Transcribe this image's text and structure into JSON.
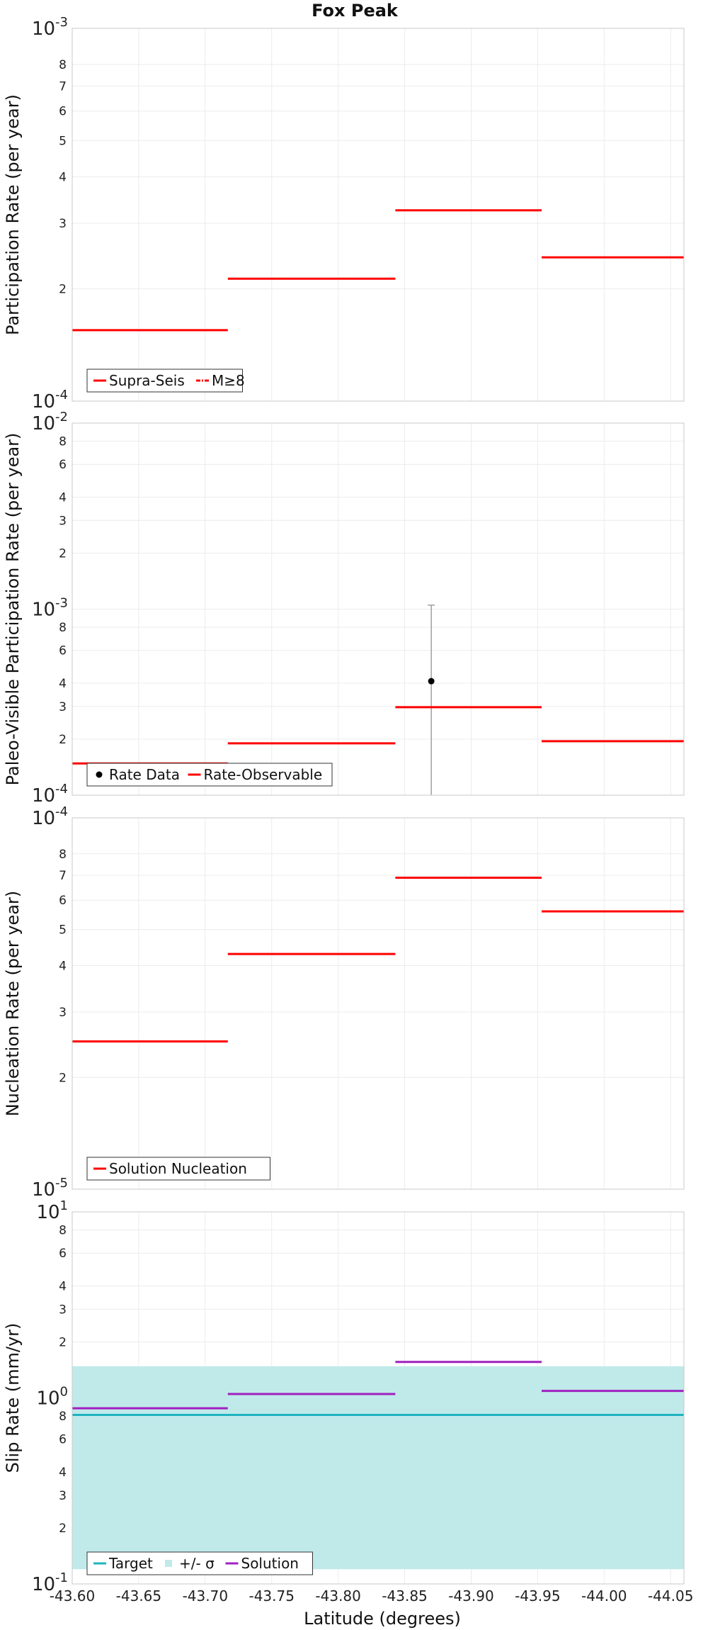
{
  "chart_data": {
    "title": "Fox Peak",
    "xlabel": "Latitude (degrees)",
    "x_range": [
      -43.6,
      -44.06
    ],
    "x_ticks": [
      -43.6,
      -43.65,
      -43.7,
      -43.75,
      -43.8,
      -43.85,
      -43.9,
      -43.95,
      -44.0,
      -44.05
    ],
    "x_tick_labels": [
      "-43.60",
      "-43.65",
      "-43.70",
      "-43.75",
      "-43.80",
      "-43.85",
      "-43.90",
      "-43.95",
      "-44.00",
      "-44.05"
    ],
    "panels": [
      {
        "type": "line",
        "ylabel": "Participation Rate (per year)",
        "yscale": "log",
        "ylim": [
          0.0001,
          0.001
        ],
        "major_labels": [
          {
            "value": 0.001,
            "base": "10",
            "exp": "-3"
          },
          {
            "value": 0.0001,
            "base": "10",
            "exp": "-4"
          }
        ],
        "minor_labels": [
          {
            "value": 0.0008,
            "label": "8"
          },
          {
            "value": 0.0007,
            "label": "7"
          },
          {
            "value": 0.0006,
            "label": "6"
          },
          {
            "value": 0.0005,
            "label": "5"
          },
          {
            "value": 0.0004,
            "label": "4"
          },
          {
            "value": 0.0003,
            "label": "3"
          },
          {
            "value": 0.0002,
            "label": "2"
          }
        ],
        "series": [
          {
            "name": "Supra-Seis",
            "color": "#ff0000",
            "style": "solid",
            "segments": [
              [
                -43.6,
                -43.717,
                0.000155
              ],
              [
                -43.717,
                -43.843,
                0.000213
              ],
              [
                -43.843,
                -43.953,
                0.000325
              ],
              [
                -43.953,
                -44.06,
                0.000243
              ]
            ]
          },
          {
            "name": "M≥8",
            "color": "#ff0000",
            "style": "dashdot",
            "segments": []
          }
        ],
        "legend": [
          "Supra-Seis",
          "M≥8"
        ]
      },
      {
        "type": "line",
        "ylabel": "Paleo-Visible Participation Rate (per year)",
        "yscale": "log",
        "ylim": [
          0.0001,
          0.01
        ],
        "major_labels": [
          {
            "value": 0.01,
            "base": "10",
            "exp": "-2"
          },
          {
            "value": 0.001,
            "base": "10",
            "exp": "-3"
          },
          {
            "value": 0.0001,
            "base": "10",
            "exp": "-4"
          }
        ],
        "minor_labels": [
          {
            "value": 0.008,
            "label": "8"
          },
          {
            "value": 0.006,
            "label": "6"
          },
          {
            "value": 0.004,
            "label": "4"
          },
          {
            "value": 0.003,
            "label": "3"
          },
          {
            "value": 0.002,
            "label": "2"
          },
          {
            "value": 0.0008,
            "label": "8"
          },
          {
            "value": 0.0006,
            "label": "6"
          },
          {
            "value": 0.0004,
            "label": "4"
          },
          {
            "value": 0.0003,
            "label": "3"
          },
          {
            "value": 0.0002,
            "label": "2"
          }
        ],
        "series": [
          {
            "name": "Rate-Observable",
            "color": "#ff0000",
            "style": "solid",
            "segments": [
              [
                -43.6,
                -43.717,
                0.000148
              ],
              [
                -43.717,
                -43.843,
                0.00019
              ],
              [
                -43.843,
                -43.953,
                0.000297
              ],
              [
                -43.953,
                -44.06,
                0.000195
              ]
            ]
          }
        ],
        "points": [
          {
            "name": "Rate Data",
            "x": -43.87,
            "y": 0.00041,
            "y_low": 0.0001,
            "y_high": 0.00105
          }
        ],
        "legend": [
          "Rate Data",
          "Rate-Observable"
        ]
      },
      {
        "type": "line",
        "ylabel": "Nucleation Rate (per year)",
        "yscale": "log",
        "ylim": [
          1e-05,
          0.0001
        ],
        "major_labels": [
          {
            "value": 0.0001,
            "base": "10",
            "exp": "-4"
          },
          {
            "value": 1e-05,
            "base": "10",
            "exp": "-5"
          }
        ],
        "minor_labels": [
          {
            "value": 8e-05,
            "label": "8"
          },
          {
            "value": 7e-05,
            "label": "7"
          },
          {
            "value": 6e-05,
            "label": "6"
          },
          {
            "value": 5e-05,
            "label": "5"
          },
          {
            "value": 4e-05,
            "label": "4"
          },
          {
            "value": 3e-05,
            "label": "3"
          },
          {
            "value": 2e-05,
            "label": "2"
          }
        ],
        "series": [
          {
            "name": "Solution Nucleation",
            "color": "#ff0000",
            "style": "solid",
            "segments": [
              [
                -43.6,
                -43.717,
                2.5e-05
              ],
              [
                -43.717,
                -43.843,
                4.3e-05
              ],
              [
                -43.843,
                -43.953,
                6.9e-05
              ],
              [
                -43.953,
                -44.06,
                5.6e-05
              ]
            ]
          }
        ],
        "legend": [
          "Solution Nucleation"
        ]
      },
      {
        "type": "line",
        "ylabel": "Slip Rate (mm/yr)",
        "yscale": "log",
        "ylim": [
          0.1,
          10
        ],
        "major_labels": [
          {
            "value": 10,
            "base": "10",
            "exp": "1"
          },
          {
            "value": 1,
            "base": "10",
            "exp": "0"
          },
          {
            "value": 0.1,
            "base": "10",
            "exp": "-1"
          }
        ],
        "minor_labels": [
          {
            "value": 8,
            "label": "8"
          },
          {
            "value": 6,
            "label": "6"
          },
          {
            "value": 4,
            "label": "4"
          },
          {
            "value": 3,
            "label": "3"
          },
          {
            "value": 2,
            "label": "2"
          },
          {
            "value": 0.8,
            "label": "8"
          },
          {
            "value": 0.6,
            "label": "6"
          },
          {
            "value": 0.4,
            "label": "4"
          },
          {
            "value": 0.3,
            "label": "3"
          },
          {
            "value": 0.2,
            "label": "2"
          }
        ],
        "band": {
          "name": "+/- σ",
          "color": "#c0eaea",
          "x": [
            -43.6,
            -44.06
          ],
          "y": [
            0.12,
            1.48
          ]
        },
        "series": [
          {
            "name": "Target",
            "color": "#1fb3c0",
            "style": "solid",
            "segments": [
              [
                -43.6,
                -44.06,
                0.81
              ]
            ]
          },
          {
            "name": "Solution",
            "color": "#a020c0",
            "style": "solid",
            "segments": [
              [
                -43.6,
                -43.717,
                0.88
              ],
              [
                -43.717,
                -43.843,
                1.05
              ],
              [
                -43.843,
                -43.953,
                1.56
              ],
              [
                -43.953,
                -44.06,
                1.09
              ]
            ]
          }
        ],
        "legend": [
          "Target",
          "+/- σ",
          "Solution"
        ]
      }
    ]
  }
}
